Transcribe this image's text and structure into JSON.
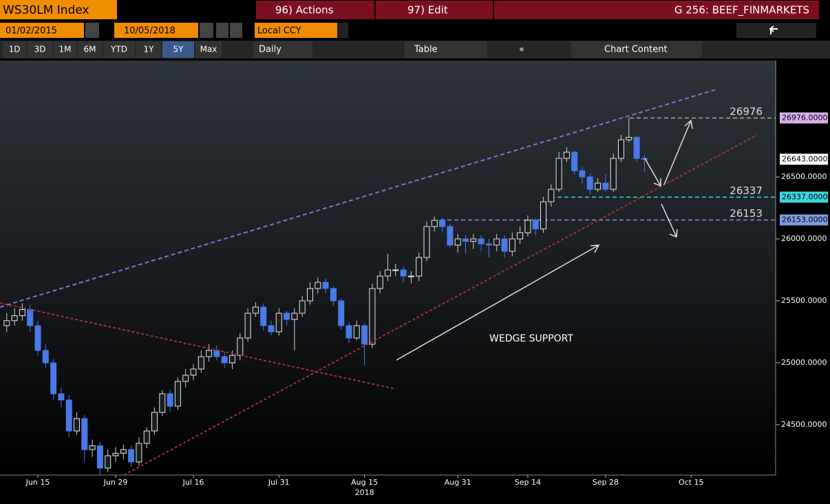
{
  "header": {
    "title": "WS30LM Index",
    "actions": "96) Actions",
    "edit": "97) Edit",
    "page": "G 256: BEEF_FINMARKETS"
  },
  "controls": {
    "start_date": "01/02/2015",
    "end_date": "10/05/2018",
    "currency": "Local CCY",
    "periods": [
      "1D",
      "3D",
      "1M",
      "6M",
      "YTD",
      "1Y",
      "5Y",
      "Max"
    ],
    "frequency": "Daily",
    "table": "Table",
    "chart_content": "Chart Content"
  },
  "chart_data": {
    "type": "candlestick",
    "categories": [
      null,
      null,
      null,
      null,
      "Jun 15",
      null,
      null,
      null,
      null,
      null,
      null,
      null,
      null,
      null,
      "Jun 29",
      null,
      null,
      null,
      null,
      null,
      null,
      null,
      null,
      null,
      "Jul 16",
      null,
      null,
      null,
      null,
      null,
      null,
      null,
      null,
      null,
      null,
      "Jul 31",
      null,
      null,
      null,
      null,
      null,
      null,
      null,
      null,
      null,
      null,
      "Aug 15",
      null,
      null,
      null,
      null,
      null,
      null,
      null,
      null,
      null,
      null,
      null,
      "Aug 31",
      null,
      null,
      null,
      null,
      null,
      null,
      null,
      null,
      "Sep 14",
      null,
      null,
      null,
      null,
      null,
      null,
      null,
      null,
      null,
      "Sep 28",
      null,
      null,
      null,
      null,
      null,
      null,
      null,
      null,
      null,
      null,
      "Oct 15"
    ],
    "year_label": "2018",
    "open": [
      25300,
      25340,
      25380,
      25430,
      25300,
      25100,
      25000,
      24750,
      24700,
      24450,
      24550,
      24300,
      24330,
      24150,
      24250,
      24270,
      24300,
      24200,
      24350,
      24450,
      24600,
      24750,
      24650,
      24850,
      24900,
      24950,
      25050,
      25100,
      25050,
      25000,
      25060,
      25200,
      25400,
      25450,
      25300,
      25250,
      25400,
      25350,
      25400,
      25500,
      25600,
      25650,
      25600,
      25500,
      25300,
      25200,
      25300,
      25150,
      25600,
      25700,
      25750,
      25750,
      25700,
      25700,
      25850,
      26100,
      26150,
      26100,
      25950,
      26000,
      25980,
      26000,
      25960,
      25950,
      26000,
      25900,
      26000,
      26050,
      26150,
      26080,
      26300,
      26400,
      26650,
      26700,
      26550,
      26500,
      26400,
      26450,
      26400,
      26650,
      26800,
      26820,
      26650,
      null,
      null,
      null,
      null,
      null,
      null
    ],
    "high": [
      25400,
      25440,
      25480,
      25470,
      25340,
      25150,
      25030,
      24800,
      24740,
      24600,
      24580,
      24380,
      24360,
      24300,
      24320,
      24340,
      24330,
      24400,
      24480,
      24640,
      24780,
      24780,
      24880,
      24950,
      24990,
      25100,
      25150,
      25140,
      25090,
      25100,
      25240,
      25440,
      25490,
      25480,
      25340,
      25440,
      25420,
      25440,
      25540,
      25650,
      25690,
      25680,
      25620,
      25520,
      25330,
      25340,
      25320,
      25640,
      25740,
      25880,
      25800,
      25780,
      25740,
      25890,
      26140,
      26180,
      26170,
      26120,
      26040,
      26030,
      26040,
      26030,
      26000,
      26040,
      26030,
      26050,
      26100,
      26190,
      26170,
      26340,
      26440,
      26700,
      26740,
      26710,
      26580,
      26530,
      26490,
      26520,
      26690,
      26840,
      26976,
      26830,
      26680,
      null,
      null,
      null,
      null,
      null,
      null
    ],
    "low": [
      25250,
      25300,
      25340,
      25250,
      25060,
      24960,
      24700,
      24640,
      24400,
      24420,
      24200,
      24240,
      24100,
      24120,
      24200,
      24220,
      24160,
      24170,
      24310,
      24420,
      24570,
      24600,
      24620,
      24800,
      24860,
      24920,
      25010,
      25020,
      24960,
      24950,
      25020,
      25170,
      25370,
      25260,
      25220,
      25220,
      25300,
      25100,
      25370,
      25470,
      25560,
      25560,
      25460,
      25270,
      25160,
      25180,
      24980,
      25120,
      25560,
      25660,
      25700,
      25650,
      25640,
      25660,
      25820,
      26060,
      26050,
      25930,
      25890,
      25880,
      25920,
      25900,
      25850,
      25900,
      25850,
      25860,
      25960,
      26020,
      26030,
      26050,
      26260,
      26380,
      26620,
      26520,
      26450,
      26360,
      26380,
      26380,
      26380,
      26620,
      26780,
      26620,
      26540,
      null,
      null,
      null,
      null,
      null,
      null
    ],
    "close": [
      25340,
      25380,
      25430,
      25300,
      25100,
      25000,
      24750,
      24700,
      24450,
      24550,
      24300,
      24330,
      24150,
      24250,
      24270,
      24300,
      24200,
      24350,
      24450,
      24600,
      24750,
      24650,
      24850,
      24900,
      24950,
      25050,
      25100,
      25050,
      25000,
      25060,
      25200,
      25400,
      25450,
      25300,
      25250,
      25400,
      25350,
      25400,
      25500,
      25600,
      25650,
      25600,
      25500,
      25300,
      25200,
      25300,
      25150,
      25600,
      25700,
      25750,
      25750,
      25700,
      25700,
      25850,
      26100,
      26150,
      26100,
      25950,
      26000,
      25980,
      26000,
      25960,
      25950,
      26000,
      25900,
      26000,
      26050,
      26150,
      26080,
      26300,
      26400,
      26650,
      26700,
      26550,
      26500,
      26400,
      26450,
      26400,
      26650,
      26800,
      26820,
      26650,
      26643,
      null,
      null,
      null,
      null,
      null,
      null
    ],
    "up_color": "#e8e8e8",
    "down_color": "#4a7ae8",
    "ylim": [
      24094,
      27439
    ],
    "yticks": [
      {
        "value": 24500,
        "label": "24500.0000"
      },
      {
        "value": 25000,
        "label": "25000.0000"
      },
      {
        "value": 25500,
        "label": "25500.0000"
      },
      {
        "value": 26000,
        "label": "26000.0000"
      },
      {
        "value": 26500,
        "label": "26500.0000"
      }
    ],
    "levels": [
      {
        "value": 26976,
        "label": "26976",
        "tag": "26976.0000",
        "color": "#d8b0f0"
      },
      {
        "value": 26337,
        "label": "26337",
        "tag": "26337.0000",
        "color": "#40d8e0"
      },
      {
        "value": 26153,
        "label": "26153",
        "tag": "26153.0000",
        "color": "#7f9ae0"
      }
    ],
    "last_price": {
      "value": 26643,
      "label": "26643.0000"
    },
    "annotation": "WEDGE SUPPORT"
  }
}
